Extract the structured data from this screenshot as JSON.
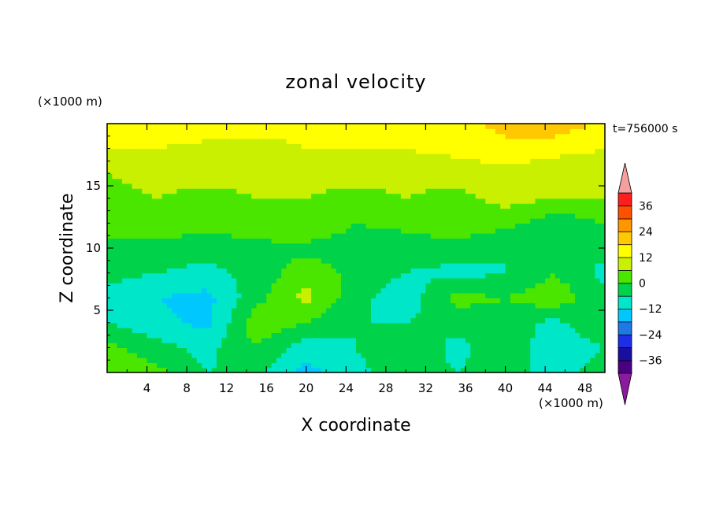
{
  "chart_data": {
    "type": "heatmap",
    "title": "zonal velocity",
    "xlabel": "X coordinate",
    "ylabel": "Z coordinate",
    "x_unit": "(×1000 m)",
    "y_unit": "(×1000 m)",
    "time_label": "t=756000 s",
    "xlim": [
      0,
      50
    ],
    "ylim": [
      0,
      20
    ],
    "x_ticks": [
      4,
      8,
      12,
      16,
      20,
      24,
      28,
      32,
      36,
      40,
      44,
      48
    ],
    "y_ticks": [
      5,
      10,
      15
    ],
    "colorbar": {
      "levels": [
        -42,
        -36,
        -30,
        -24,
        -18,
        -12,
        -6,
        0,
        6,
        12,
        18,
        24,
        30,
        36,
        42
      ],
      "labels": [
        "-36",
        "-24",
        "-12",
        "0",
        "12",
        "24",
        "36"
      ],
      "label_values": [
        -36,
        -24,
        -12,
        0,
        12,
        24,
        36
      ],
      "colors": [
        "#7f007f",
        "#4b0082",
        "#1a0e9e",
        "#1e2ee6",
        "#1e78e6",
        "#00c8ff",
        "#00e6c8",
        "#00d24a",
        "#4be600",
        "#c8f000",
        "#ffff00",
        "#ffc800",
        "#ff9600",
        "#ff5000",
        "#ff1e1e",
        "#ff9eaa"
      ],
      "under_color": "#8b1a9e",
      "over_color": "#f5a0a0"
    },
    "grid_x": [
      0,
      5,
      10,
      15,
      20,
      25,
      30,
      35,
      40,
      45,
      50
    ],
    "grid_z": [
      0,
      2,
      4,
      6,
      8,
      10,
      12,
      14,
      16,
      18,
      20
    ],
    "values": [
      [
        6,
        2,
        -6,
        -4,
        -14,
        -8,
        -2,
        -6,
        -4,
        -8,
        -4
      ],
      [
        2,
        -4,
        -8,
        0,
        -10,
        -6,
        0,
        -8,
        -2,
        -10,
        -6
      ],
      [
        -6,
        -10,
        -14,
        4,
        0,
        -6,
        -6,
        -4,
        -2,
        -8,
        0
      ],
      [
        -8,
        -12,
        -14,
        -2,
        8,
        -4,
        -10,
        2,
        0,
        4,
        -4
      ],
      [
        -4,
        -6,
        -8,
        -4,
        4,
        -2,
        -6,
        -8,
        -6,
        0,
        -8
      ],
      [
        -2,
        -2,
        -4,
        -2,
        -2,
        -4,
        -4,
        -2,
        -6,
        -6,
        -4
      ],
      [
        2,
        4,
        2,
        4,
        6,
        0,
        2,
        4,
        2,
        -4,
        0
      ],
      [
        4,
        6,
        4,
        6,
        6,
        4,
        6,
        4,
        8,
        6,
        6
      ],
      [
        6,
        8,
        8,
        8,
        8,
        8,
        8,
        8,
        10,
        8,
        8
      ],
      [
        12,
        12,
        10,
        10,
        12,
        12,
        12,
        14,
        16,
        14,
        12
      ],
      [
        14,
        16,
        16,
        14,
        14,
        14,
        16,
        16,
        20,
        22,
        16
      ]
    ]
  }
}
